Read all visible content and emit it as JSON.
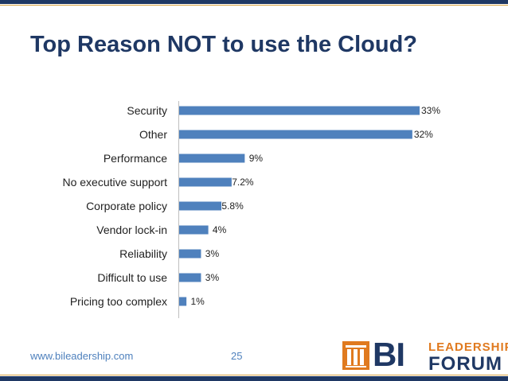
{
  "slide": {
    "title": "Top Reason NOT to use the Cloud?",
    "footer_url": "www.bileadership.com",
    "page_number": "25"
  },
  "logo": {
    "mark": "BI",
    "line1": "LEADERSHIP",
    "line2": "FORUM"
  },
  "colors": {
    "bar": "#4f81bd",
    "title": "#1f3864",
    "accent": "#e07a1f",
    "footer": "#4f81bd"
  },
  "chart_data": {
    "type": "bar",
    "orientation": "horizontal",
    "title": "Top Reason NOT to use the Cloud?",
    "categories": [
      "Security",
      "Other",
      "Performance",
      "No executive support",
      "Corporate policy",
      "Vendor lock-in",
      "Reliability",
      "Difficult to use",
      "Pricing too complex"
    ],
    "values": [
      33,
      32,
      9,
      7.2,
      5.8,
      4,
      3,
      3,
      1
    ],
    "value_labels": [
      "33%",
      "32%",
      "9%",
      "7.2%",
      "5.8%",
      "4%",
      "3%",
      "3%",
      "1%"
    ],
    "xlabel": "",
    "ylabel": "",
    "xlim": [
      0,
      33
    ],
    "grid": false,
    "legend": "none"
  }
}
